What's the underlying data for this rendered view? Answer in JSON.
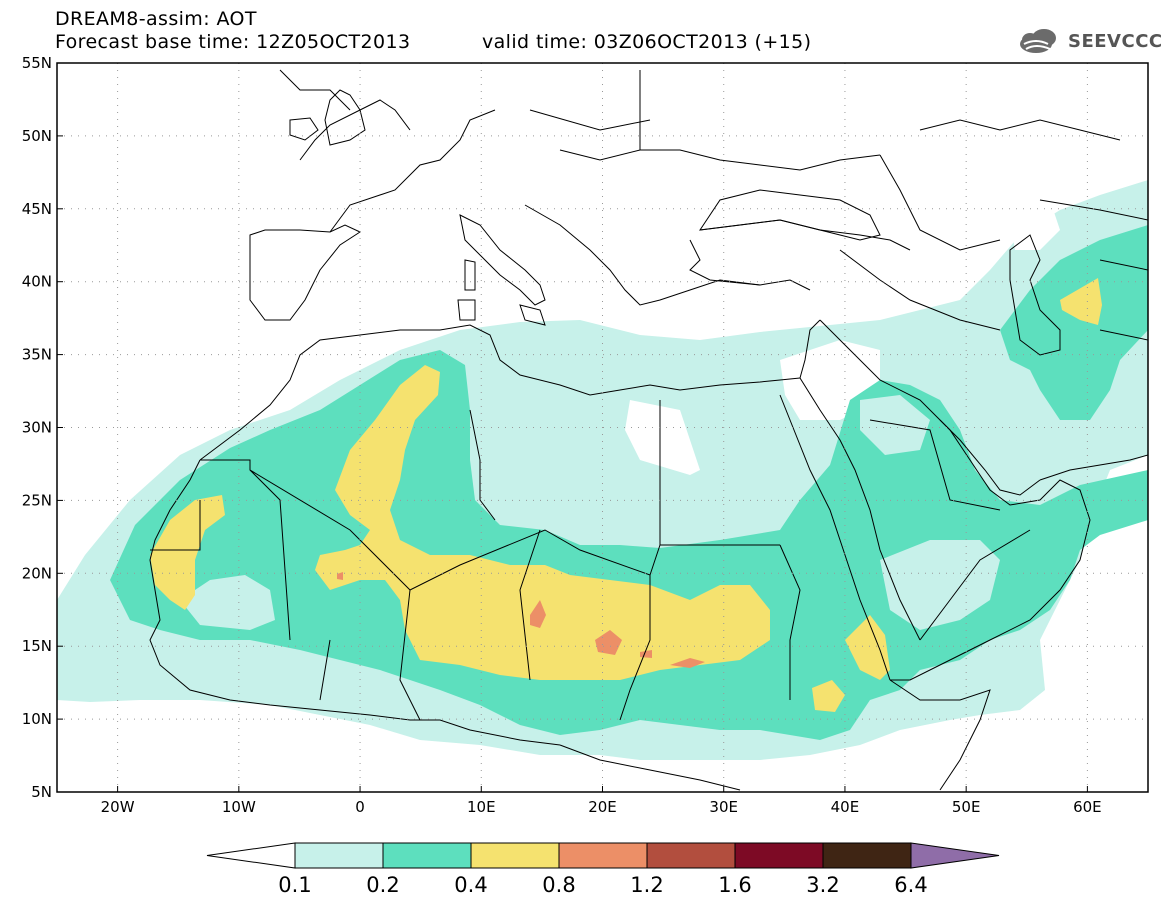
{
  "header": {
    "title_line1": "DREAM8-assim: AOT",
    "title_line2": "Forecast base time: 12Z05OCT2013",
    "valid_time": "valid time: 03Z06OCT2013 (+15)",
    "logo_text": "SEEVCCC"
  },
  "map": {
    "lon_range": [
      -25,
      65
    ],
    "lat_range": [
      5,
      55
    ],
    "lon_ticks": [
      {
        "lon": -20,
        "label": "20W"
      },
      {
        "lon": -10,
        "label": "10W"
      },
      {
        "lon": 0,
        "label": "0"
      },
      {
        "lon": 10,
        "label": "10E"
      },
      {
        "lon": 20,
        "label": "20E"
      },
      {
        "lon": 30,
        "label": "30E"
      },
      {
        "lon": 40,
        "label": "40E"
      },
      {
        "lon": 50,
        "label": "50E"
      },
      {
        "lon": 60,
        "label": "60E"
      }
    ],
    "lat_ticks": [
      {
        "lat": 55,
        "label": "55N"
      },
      {
        "lat": 50,
        "label": "50N"
      },
      {
        "lat": 45,
        "label": "45N"
      },
      {
        "lat": 40,
        "label": "40N"
      },
      {
        "lat": 35,
        "label": "35N"
      },
      {
        "lat": 30,
        "label": "30N"
      },
      {
        "lat": 25,
        "label": "25N"
      },
      {
        "lat": 20,
        "label": "20N"
      },
      {
        "lat": 15,
        "label": "15N"
      },
      {
        "lat": 10,
        "label": "10N"
      },
      {
        "lat": 5,
        "label": "5N"
      }
    ]
  },
  "colorbar": {
    "levels": [
      "0.1",
      "0.2",
      "0.4",
      "0.8",
      "1.2",
      "1.6",
      "3.2",
      "6.4"
    ],
    "colors": [
      "#c7f1ea",
      "#5ddfbe",
      "#f5e26f",
      "#ec8f67",
      "#b24e3e",
      "#7d0a25",
      "#3f2514",
      "#8f6da8"
    ]
  },
  "colors": {
    "aot_0_1": "#c7f1ea",
    "aot_0_2": "#5ddfbe",
    "aot_0_4": "#f5e26f",
    "aot_0_8": "#ec8f67"
  }
}
